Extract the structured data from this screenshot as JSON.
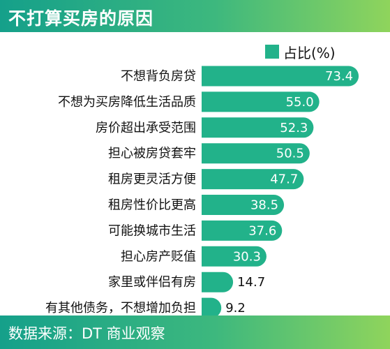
{
  "header": {
    "title": "不打算买房的原因"
  },
  "footer": {
    "source": "数据来源：DT 商业观察"
  },
  "legend": {
    "label": "占比(%)"
  },
  "colors": {
    "bar": "#22b28a",
    "value_inside": "#ffffff",
    "value_outside": "#111111"
  },
  "chart_data": {
    "type": "bar",
    "orientation": "horizontal",
    "title": "不打算买房的原因",
    "categories": [
      "不想背负房贷",
      "不想为买房降低生活品质",
      "房价超出承受范围",
      "担心被房贷套牢",
      "租房更灵活方便",
      "租房性价比更高",
      "可能换城市生活",
      "担心房产贬值",
      "家里或伴侣有房",
      "有其他债务，不想增加负担"
    ],
    "series": [
      {
        "name": "占比(%)",
        "values": [
          73.4,
          55.0,
          52.3,
          50.5,
          47.7,
          38.5,
          37.6,
          30.3,
          14.7,
          9.2
        ]
      }
    ],
    "value_labels": [
      "73.4",
      "55.0",
      "52.3",
      "50.5",
      "47.7",
      "38.5",
      "37.6",
      "30.3",
      "14.7",
      "9.2"
    ],
    "xlim": [
      0,
      75
    ],
    "grid": false,
    "legend_position": "top-right"
  }
}
